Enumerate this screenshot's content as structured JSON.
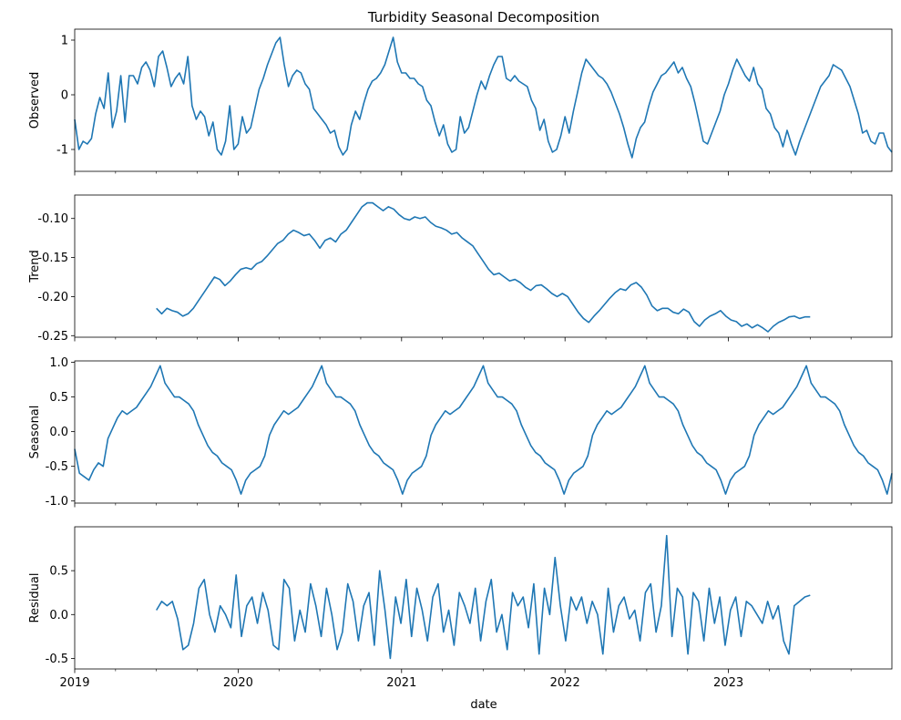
{
  "chart_data": {
    "type": "line",
    "title": "Turbidity Seasonal Decomposition",
    "xlabel": "date",
    "x_range": [
      "2019-01-01",
      "2023-12-31"
    ],
    "x_ticks": [
      "2019",
      "2020",
      "2021",
      "2022",
      "2023"
    ],
    "line_color": "#1f77b4",
    "panels": [
      {
        "name": "observed",
        "ylabel": "Observed",
        "ylim": [
          -1.4,
          1.2
        ],
        "yticks": [
          "-1",
          "0",
          "1"
        ],
        "ytick_values": [
          -1,
          0,
          1
        ],
        "x_start": 0.0,
        "x_end": 5.0,
        "values": [
          -0.45,
          -1.0,
          -0.85,
          -0.9,
          -0.8,
          -0.35,
          -0.05,
          -0.25,
          0.4,
          -0.6,
          -0.3,
          0.35,
          -0.5,
          0.35,
          0.35,
          0.2,
          0.5,
          0.6,
          0.45,
          0.15,
          0.7,
          0.8,
          0.5,
          0.15,
          0.3,
          0.4,
          0.2,
          0.7,
          -0.2,
          -0.45,
          -0.3,
          -0.4,
          -0.75,
          -0.5,
          -1.0,
          -1.1,
          -0.85,
          -0.2,
          -1.0,
          -0.9,
          -0.4,
          -0.7,
          -0.6,
          -0.25,
          0.1,
          0.3,
          0.55,
          0.75,
          0.95,
          1.05,
          0.55,
          0.15,
          0.35,
          0.45,
          0.4,
          0.2,
          0.1,
          -0.25,
          -0.35,
          -0.45,
          -0.55,
          -0.7,
          -0.65,
          -0.95,
          -1.1,
          -1.0,
          -0.55,
          -0.3,
          -0.45,
          -0.15,
          0.1,
          0.25,
          0.3,
          0.4,
          0.55,
          0.8,
          1.05,
          0.6,
          0.4,
          0.4,
          0.3,
          0.3,
          0.2,
          0.15,
          -0.1,
          -0.2,
          -0.5,
          -0.75,
          -0.55,
          -0.9,
          -1.05,
          -1.0,
          -0.4,
          -0.7,
          -0.6,
          -0.3,
          0.0,
          0.25,
          0.1,
          0.35,
          0.55,
          0.7,
          0.7,
          0.3,
          0.25,
          0.35,
          0.25,
          0.2,
          0.15,
          -0.1,
          -0.25,
          -0.65,
          -0.45,
          -0.85,
          -1.05,
          -1.0,
          -0.75,
          -0.4,
          -0.7,
          -0.3,
          0.05,
          0.4,
          0.65,
          0.55,
          0.45,
          0.35,
          0.3,
          0.2,
          0.05,
          -0.15,
          -0.35,
          -0.6,
          -0.9,
          -1.15,
          -0.8,
          -0.6,
          -0.5,
          -0.2,
          0.05,
          0.2,
          0.35,
          0.4,
          0.5,
          0.6,
          0.4,
          0.5,
          0.3,
          0.15,
          -0.15,
          -0.5,
          -0.85,
          -0.9,
          -0.7,
          -0.5,
          -0.3,
          0.0,
          0.2,
          0.45,
          0.65,
          0.5,
          0.35,
          0.25,
          0.5,
          0.2,
          0.1,
          -0.25,
          -0.35,
          -0.6,
          -0.7,
          -0.95,
          -0.65,
          -0.9,
          -1.1,
          -0.85,
          -0.65,
          -0.45,
          -0.25,
          -0.05,
          0.15,
          0.25,
          0.35,
          0.55,
          0.5,
          0.45,
          0.3,
          0.15,
          -0.1,
          -0.35,
          -0.7,
          -0.65,
          -0.85,
          -0.9,
          -0.7,
          -0.7,
          -0.95,
          -1.05
        ]
      },
      {
        "name": "trend",
        "ylabel": "Trend",
        "ylim": [
          -0.252,
          -0.07
        ],
        "yticks": [
          "-0.25",
          "-0.20",
          "-0.15",
          "-0.10"
        ],
        "ytick_values": [
          -0.25,
          -0.2,
          -0.15,
          -0.1
        ],
        "x_start": 0.5,
        "x_end": 4.5,
        "values": [
          -0.215,
          -0.222,
          -0.215,
          -0.218,
          -0.22,
          -0.225,
          -0.222,
          -0.215,
          -0.205,
          -0.195,
          -0.185,
          -0.175,
          -0.178,
          -0.186,
          -0.18,
          -0.172,
          -0.165,
          -0.163,
          -0.165,
          -0.158,
          -0.155,
          -0.148,
          -0.14,
          -0.132,
          -0.128,
          -0.12,
          -0.115,
          -0.118,
          -0.122,
          -0.12,
          -0.128,
          -0.138,
          -0.128,
          -0.125,
          -0.13,
          -0.12,
          -0.115,
          -0.105,
          -0.095,
          -0.085,
          -0.08,
          -0.08,
          -0.085,
          -0.09,
          -0.085,
          -0.088,
          -0.095,
          -0.1,
          -0.102,
          -0.098,
          -0.1,
          -0.098,
          -0.105,
          -0.11,
          -0.112,
          -0.115,
          -0.12,
          -0.118,
          -0.125,
          -0.13,
          -0.135,
          -0.145,
          -0.155,
          -0.165,
          -0.172,
          -0.17,
          -0.175,
          -0.18,
          -0.178,
          -0.182,
          -0.188,
          -0.192,
          -0.186,
          -0.185,
          -0.19,
          -0.196,
          -0.2,
          -0.196,
          -0.2,
          -0.21,
          -0.22,
          -0.228,
          -0.233,
          -0.225,
          -0.218,
          -0.21,
          -0.202,
          -0.195,
          -0.19,
          -0.192,
          -0.185,
          -0.182,
          -0.188,
          -0.198,
          -0.212,
          -0.218,
          -0.215,
          -0.215,
          -0.22,
          -0.222,
          -0.216,
          -0.22,
          -0.232,
          -0.238,
          -0.23,
          -0.225,
          -0.222,
          -0.218,
          -0.225,
          -0.23,
          -0.232,
          -0.238,
          -0.235,
          -0.24,
          -0.236,
          -0.24,
          -0.245,
          -0.238,
          -0.233,
          -0.23,
          -0.226,
          -0.225,
          -0.228,
          -0.226,
          -0.226
        ]
      },
      {
        "name": "seasonal",
        "ylabel": "Seasonal",
        "ylim": [
          -1.03,
          1.02
        ],
        "yticks": [
          "-1.0",
          "-0.5",
          "0.0",
          "0.5",
          "1.0"
        ],
        "ytick_values": [
          -1.0,
          -0.5,
          0.0,
          0.5,
          1.0
        ],
        "x_start": 0.0,
        "x_end": 5.0,
        "values": [
          -0.25,
          -0.6,
          -0.65,
          -0.7,
          -0.55,
          -0.45,
          -0.5,
          -0.1,
          0.05,
          0.2,
          0.3,
          0.25,
          0.3,
          0.35,
          0.45,
          0.55,
          0.65,
          0.8,
          0.95,
          0.7,
          0.6,
          0.5,
          0.5,
          0.45,
          0.4,
          0.3,
          0.1,
          -0.05,
          -0.2,
          -0.3,
          -0.35,
          -0.45,
          -0.5,
          -0.55,
          -0.7,
          -0.9,
          -0.7,
          -0.6,
          -0.55,
          -0.5,
          -0.35,
          -0.05,
          0.1,
          0.2,
          0.3,
          0.25,
          0.3,
          0.35,
          0.45,
          0.55,
          0.65,
          0.8,
          0.95,
          0.7,
          0.6,
          0.5,
          0.5,
          0.45,
          0.4,
          0.3,
          0.1,
          -0.05,
          -0.2,
          -0.3,
          -0.35,
          -0.45,
          -0.5,
          -0.55,
          -0.7,
          -0.9,
          -0.7,
          -0.6,
          -0.55,
          -0.5,
          -0.35,
          -0.05,
          0.1,
          0.2,
          0.3,
          0.25,
          0.3,
          0.35,
          0.45,
          0.55,
          0.65,
          0.8,
          0.95,
          0.7,
          0.6,
          0.5,
          0.5,
          0.45,
          0.4,
          0.3,
          0.1,
          -0.05,
          -0.2,
          -0.3,
          -0.35,
          -0.45,
          -0.5,
          -0.55,
          -0.7,
          -0.9,
          -0.7,
          -0.6,
          -0.55,
          -0.5,
          -0.35,
          -0.05,
          0.1,
          0.2,
          0.3,
          0.25,
          0.3,
          0.35,
          0.45,
          0.55,
          0.65,
          0.8,
          0.95,
          0.7,
          0.6,
          0.5,
          0.5,
          0.45,
          0.4,
          0.3,
          0.1,
          -0.05,
          -0.2,
          -0.3,
          -0.35,
          -0.45,
          -0.5,
          -0.55,
          -0.7,
          -0.9,
          -0.7,
          -0.6,
          -0.55,
          -0.5,
          -0.35,
          -0.05,
          0.1,
          0.2,
          0.3,
          0.25,
          0.3,
          0.35,
          0.45,
          0.55,
          0.65,
          0.8,
          0.95,
          0.7,
          0.6,
          0.5,
          0.5,
          0.45,
          0.4,
          0.3,
          0.1,
          -0.05,
          -0.2,
          -0.3,
          -0.35,
          -0.45,
          -0.5,
          -0.55,
          -0.7,
          -0.9,
          -0.6
        ]
      },
      {
        "name": "residual",
        "ylabel": "Residual",
        "ylim": [
          -0.62,
          1.0
        ],
        "yticks": [
          "-0.5",
          "0.0",
          "0.5"
        ],
        "ytick_values": [
          -0.5,
          0.0,
          0.5
        ],
        "x_start": 0.5,
        "x_end": 4.5,
        "values": [
          0.05,
          0.15,
          0.1,
          0.15,
          -0.05,
          -0.4,
          -0.35,
          -0.1,
          0.3,
          0.4,
          0.0,
          -0.2,
          0.1,
          0.0,
          -0.15,
          0.45,
          -0.25,
          0.1,
          0.2,
          -0.1,
          0.25,
          0.05,
          -0.35,
          -0.4,
          0.4,
          0.3,
          -0.3,
          0.05,
          -0.2,
          0.35,
          0.1,
          -0.25,
          0.3,
          0.0,
          -0.4,
          -0.2,
          0.35,
          0.15,
          -0.3,
          0.1,
          0.25,
          -0.35,
          0.5,
          0.05,
          -0.5,
          0.2,
          -0.1,
          0.4,
          -0.25,
          0.3,
          0.05,
          -0.3,
          0.2,
          0.35,
          -0.2,
          0.05,
          -0.35,
          0.25,
          0.1,
          -0.1,
          0.3,
          -0.3,
          0.15,
          0.4,
          -0.2,
          0.0,
          -0.4,
          0.25,
          0.1,
          0.2,
          -0.15,
          0.35,
          -0.45,
          0.3,
          0.0,
          0.65,
          0.1,
          -0.3,
          0.2,
          0.05,
          0.2,
          -0.1,
          0.15,
          0.0,
          -0.45,
          0.3,
          -0.2,
          0.1,
          0.2,
          -0.05,
          0.05,
          -0.3,
          0.25,
          0.35,
          -0.2,
          0.1,
          0.9,
          -0.25,
          0.3,
          0.2,
          -0.45,
          0.25,
          0.15,
          -0.3,
          0.3,
          -0.1,
          0.2,
          -0.35,
          0.05,
          0.2,
          -0.25,
          0.15,
          0.1,
          0.0,
          -0.1,
          0.15,
          -0.05,
          0.1,
          -0.3,
          -0.45,
          0.1,
          0.15,
          0.2,
          0.22
        ]
      }
    ]
  }
}
